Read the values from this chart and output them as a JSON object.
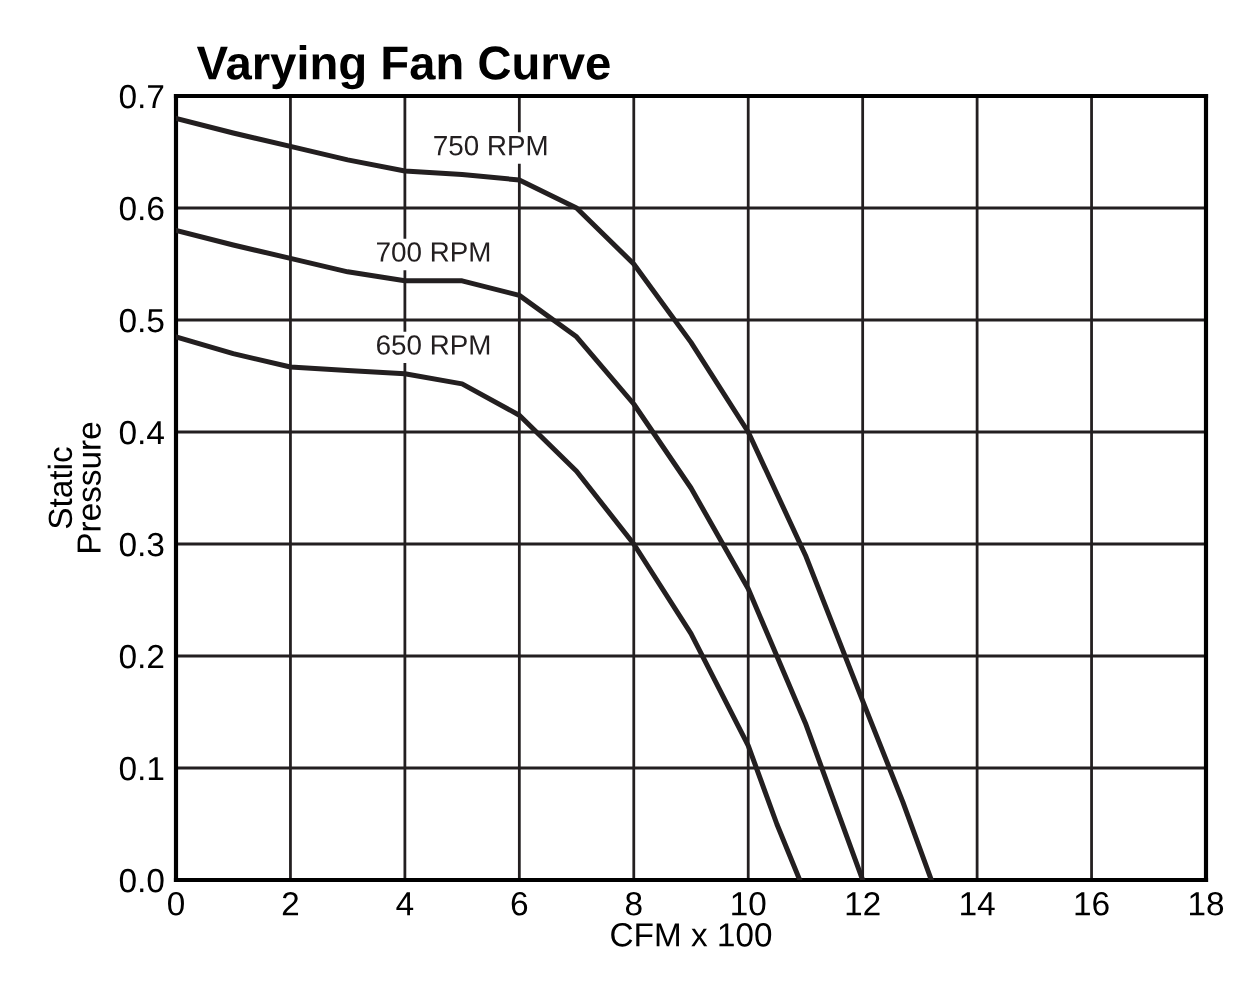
{
  "chart_data": {
    "type": "line",
    "title": "Varying Fan Curve",
    "xlabel": "CFM x 100",
    "ylabel": "Static\nPressure",
    "xlim": [
      0,
      18
    ],
    "xticks": [
      0,
      2,
      4,
      6,
      8,
      10,
      12,
      14,
      16,
      18
    ],
    "ylim": [
      0,
      0.7
    ],
    "yticks": [
      {
        "value": 0,
        "label": "0.0"
      },
      0.1,
      0.2,
      0.3,
      0.4,
      0.5,
      0.6,
      0.7
    ],
    "grid": true,
    "legend": false,
    "marker": "none",
    "line_style": "solid",
    "series": [
      {
        "name": "750 RPM",
        "color": "#231f20",
        "x": [
          0,
          1,
          2,
          3,
          4,
          5,
          6,
          7,
          8,
          9,
          10,
          11,
          12,
          12.7,
          13.2
        ],
        "values": [
          0.68,
          0.667,
          0.655,
          0.643,
          0.633,
          0.63,
          0.625,
          0.6,
          0.55,
          0.48,
          0.4,
          0.29,
          0.16,
          0.07,
          0.0
        ]
      },
      {
        "name": "700 RPM",
        "color": "#231f20",
        "x": [
          0,
          1,
          2,
          3,
          4,
          5,
          6,
          7,
          8,
          9,
          10,
          11,
          11.5,
          12
        ],
        "values": [
          0.58,
          0.567,
          0.555,
          0.543,
          0.535,
          0.535,
          0.522,
          0.485,
          0.425,
          0.35,
          0.26,
          0.14,
          0.07,
          0.0
        ]
      },
      {
        "name": "650 RPM",
        "color": "#231f20",
        "x": [
          0,
          1,
          2,
          3,
          4,
          5,
          6,
          7,
          8,
          9,
          10,
          10.5,
          10.9
        ],
        "values": [
          0.485,
          0.47,
          0.458,
          0.455,
          0.452,
          0.443,
          0.415,
          0.365,
          0.3,
          0.22,
          0.12,
          0.05,
          0.0
        ]
      }
    ]
  }
}
